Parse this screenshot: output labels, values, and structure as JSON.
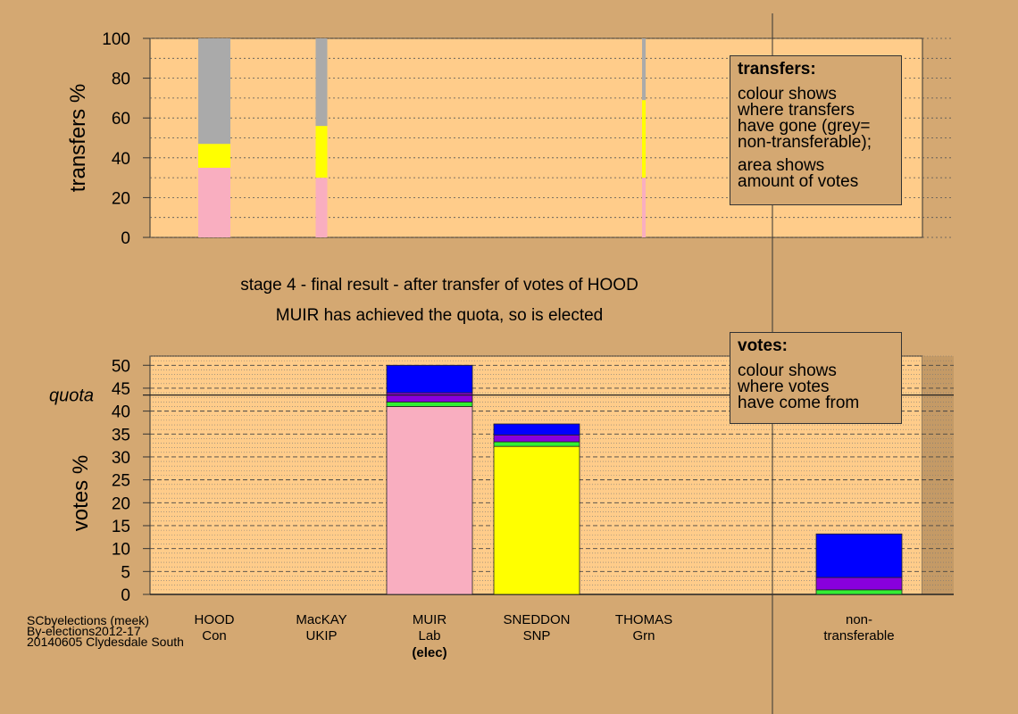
{
  "subtitle": {
    "line1": "stage 4 - final result - after transfer of votes of HOOD",
    "line2": "MUIR has achieved the quota, so is elected"
  },
  "transfers_legend": {
    "title": "transfers:",
    "lines": [
      "colour shows",
      "where transfers",
      "have gone (grey=",
      "non-transferable);"
    ],
    "lines2": [
      "area shows",
      "amount of votes"
    ]
  },
  "votes_legend": {
    "title": "votes:",
    "lines": [
      "colour shows",
      "where votes",
      "have come from"
    ]
  },
  "credits": [
    "SCbyelections (meek)",
    "By-elections2012-17",
    "20140605 Clydesdale South"
  ],
  "colors": {
    "background": "#d4a872",
    "plot_bg": "#ffcc8a",
    "Lab": "#f9aec0",
    "SNP": "#ffff00",
    "Grn": "#33ee33",
    "UKIP": "#8800dd",
    "Con": "#0000ff",
    "non_transferable": "#aaaaaa"
  },
  "chart_data": [
    {
      "type": "bar",
      "name": "transfers",
      "ylabel": "transfers %",
      "ylim": [
        0,
        100
      ],
      "yticks": [
        0,
        20,
        40,
        60,
        80,
        100
      ],
      "legend_placement": "top-right",
      "bars": [
        {
          "from": "HOOD",
          "segments": [
            {
              "to": "Lab",
              "color": "#f9aec0",
              "value": 35
            },
            {
              "to": "SNP",
              "color": "#ffff00",
              "value": 12
            },
            {
              "to": "non-transferable",
              "color": "#aaaaaa",
              "value": 53
            }
          ]
        },
        {
          "from": "MacKAY",
          "segments": [
            {
              "to": "Lab",
              "color": "#f9aec0",
              "value": 30
            },
            {
              "to": "SNP",
              "color": "#ffff00",
              "value": 26
            },
            {
              "to": "non-transferable",
              "color": "#aaaaaa",
              "value": 44
            }
          ]
        },
        {
          "from": "THOMAS",
          "segments": [
            {
              "to": "Lab",
              "color": "#f9aec0",
              "value": 30
            },
            {
              "to": "SNP",
              "color": "#ffff00",
              "value": 39
            },
            {
              "to": "non-transferable",
              "color": "#aaaaaa",
              "value": 31
            }
          ]
        }
      ]
    },
    {
      "type": "bar",
      "name": "votes",
      "ylabel": "votes %",
      "ylim": [
        0,
        52
      ],
      "yticks": [
        0,
        5,
        10,
        15,
        20,
        25,
        30,
        35,
        40,
        45,
        50
      ],
      "quota": 43.5,
      "quota_label": "quota",
      "legend_placement": "top-right",
      "categories": [
        {
          "name": "HOOD",
          "party": "Con",
          "note": ""
        },
        {
          "name": "MacKAY",
          "party": "UKIP",
          "note": ""
        },
        {
          "name": "MUIR",
          "party": "Lab",
          "note": "(elec)"
        },
        {
          "name": "SNEDDON",
          "party": "SNP",
          "note": ""
        },
        {
          "name": "THOMAS",
          "party": "Grn",
          "note": ""
        },
        {
          "name": "non-",
          "party": "transferable",
          "note": ""
        }
      ],
      "stacks": [
        [],
        [],
        [
          {
            "from": "Lab",
            "color": "#f9aec0",
            "value": 41
          },
          {
            "from": "Grn",
            "color": "#33ee33",
            "value": 1
          },
          {
            "from": "UKIP",
            "color": "#8800dd",
            "value": 2
          },
          {
            "from": "Con",
            "color": "#0000ff",
            "value": 6
          }
        ],
        [
          {
            "from": "SNP",
            "color": "#ffff00",
            "value": 32.3
          },
          {
            "from": "Grn",
            "color": "#33ee33",
            "value": 1
          },
          {
            "from": "UKIP",
            "color": "#8800dd",
            "value": 1.5
          },
          {
            "from": "Con",
            "color": "#0000ff",
            "value": 2.4
          }
        ],
        [],
        [
          {
            "from": "Grn",
            "color": "#33ee33",
            "value": 1
          },
          {
            "from": "UKIP",
            "color": "#8800dd",
            "value": 2.7
          },
          {
            "from": "Con",
            "color": "#0000ff",
            "value": 9.5
          }
        ]
      ]
    }
  ]
}
